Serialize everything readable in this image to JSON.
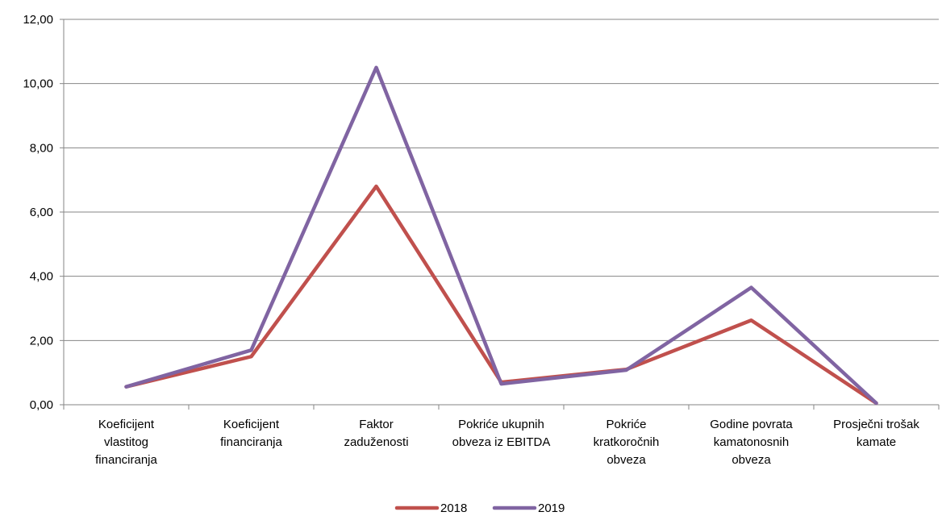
{
  "chart_data": {
    "type": "line",
    "title": "",
    "xlabel": "",
    "ylabel": "",
    "ylim": [
      0,
      12
    ],
    "yticks": [
      "0,00",
      "2,00",
      "4,00",
      "6,00",
      "8,00",
      "10,00",
      "12,00"
    ],
    "grid": true,
    "legend_position": "bottom",
    "categories": [
      [
        "Koeficijent",
        "vlastitog",
        "financiranja"
      ],
      [
        "Koeficijent",
        "financiranja"
      ],
      [
        "Faktor",
        "zaduženosti"
      ],
      [
        "Pokriće ukupnih",
        "obveza iz EBITDA"
      ],
      [
        "Pokriće",
        "kratkoročnih",
        "obveza"
      ],
      [
        "Godine povrata",
        "kamatonosnih",
        "obveza"
      ],
      [
        "Prosječni trošak",
        "kamate"
      ]
    ],
    "series": [
      {
        "name": "2018",
        "color": "#c0504d",
        "values": [
          0.56,
          1.5,
          6.8,
          0.7,
          1.1,
          2.63,
          0.05
        ]
      },
      {
        "name": "2019",
        "color": "#8064a2",
        "values": [
          0.56,
          1.7,
          10.5,
          0.65,
          1.08,
          3.65,
          0.05
        ]
      }
    ]
  }
}
